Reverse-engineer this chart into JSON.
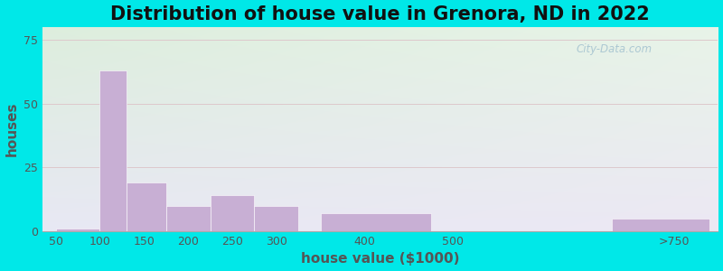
{
  "title": "Distribution of house value in Grenora, ND in 2022",
  "xlabel": "house value ($1000)",
  "ylabel": "houses",
  "bar_color": "#c8afd4",
  "background_outer": "#00e8e8",
  "background_tl": "#ddeedd",
  "background_br": "#e8e0f0",
  "yticks": [
    0,
    25,
    50,
    75
  ],
  "ylim": [
    0,
    80
  ],
  "bar_lefts": [
    50,
    100,
    130,
    175,
    225,
    275,
    350,
    550,
    680
  ],
  "bar_rights": [
    100,
    130,
    175,
    225,
    275,
    325,
    475,
    575,
    790
  ],
  "bar_heights": [
    1,
    63,
    19,
    10,
    14,
    10,
    7,
    0,
    5
  ],
  "xtick_labels": [
    "50",
    "100",
    "150",
    "200",
    "250",
    "300",
    "400",
    "500",
    ">750"
  ],
  "xtick_positions": [
    50,
    100,
    150,
    200,
    250,
    300,
    400,
    500,
    750
  ],
  "xlim_left": 35,
  "xlim_right": 800,
  "title_fontsize": 15,
  "axis_label_fontsize": 11,
  "tick_fontsize": 9,
  "watermark_text": "City-Data.com",
  "grid_color": "#ddc8cc",
  "grid_linewidth": 0.7
}
